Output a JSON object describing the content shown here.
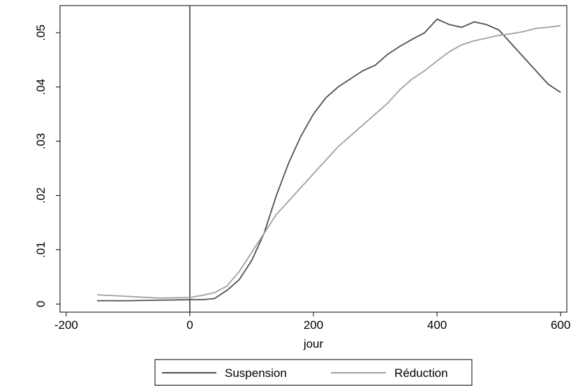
{
  "chart_data": {
    "type": "line",
    "title": "",
    "xlabel": "jour",
    "ylabel": "",
    "xlim": [
      -210,
      610
    ],
    "ylim": [
      -0.0015,
      0.055
    ],
    "xticks": [
      {
        "value": -200,
        "label": "-200"
      },
      {
        "value": 0,
        "label": "0"
      },
      {
        "value": 200,
        "label": "200"
      },
      {
        "value": 400,
        "label": "400"
      },
      {
        "value": 600,
        "label": "600"
      }
    ],
    "yticks": [
      {
        "value": 0,
        "label": "0"
      },
      {
        "value": 0.01,
        "label": ".01"
      },
      {
        "value": 0.02,
        "label": ".02"
      },
      {
        "value": 0.03,
        "label": ".03"
      },
      {
        "value": 0.04,
        "label": ".04"
      },
      {
        "value": 0.05,
        "label": ".05"
      }
    ],
    "grid": false,
    "legend_position": "bottom",
    "reference_line_x": 0,
    "series": [
      {
        "name": "Suspension",
        "color": "#505050",
        "x": [
          -150,
          -100,
          -50,
          0,
          20,
          40,
          60,
          80,
          100,
          120,
          140,
          160,
          180,
          200,
          220,
          240,
          260,
          280,
          300,
          320,
          340,
          360,
          380,
          400,
          420,
          440,
          460,
          480,
          500,
          520,
          540,
          560,
          580,
          600
        ],
        "y": [
          0.0006,
          0.0006,
          0.0007,
          0.0008,
          0.0008,
          0.001,
          0.0025,
          0.0045,
          0.008,
          0.013,
          0.02,
          0.026,
          0.031,
          0.035,
          0.038,
          0.04,
          0.0415,
          0.043,
          0.044,
          0.046,
          0.0475,
          0.0488,
          0.05,
          0.0525,
          0.0515,
          0.051,
          0.052,
          0.0515,
          0.0505,
          0.048,
          0.0455,
          0.043,
          0.0405,
          0.039
        ]
      },
      {
        "name": "Réduction",
        "color": "#a0a0a0",
        "x": [
          -150,
          -100,
          -50,
          0,
          20,
          40,
          60,
          80,
          100,
          120,
          140,
          160,
          180,
          200,
          220,
          240,
          260,
          280,
          300,
          320,
          340,
          360,
          380,
          400,
          420,
          440,
          460,
          480,
          500,
          520,
          540,
          560,
          580,
          600
        ],
        "y": [
          0.0017,
          0.0014,
          0.0011,
          0.0012,
          0.0016,
          0.0021,
          0.0033,
          0.006,
          0.0095,
          0.013,
          0.0165,
          0.019,
          0.0215,
          0.024,
          0.0265,
          0.029,
          0.031,
          0.033,
          0.035,
          0.037,
          0.0395,
          0.0415,
          0.043,
          0.0448,
          0.0465,
          0.0478,
          0.0485,
          0.049,
          0.0495,
          0.0498,
          0.0502,
          0.0508,
          0.051,
          0.0513
        ]
      }
    ]
  }
}
